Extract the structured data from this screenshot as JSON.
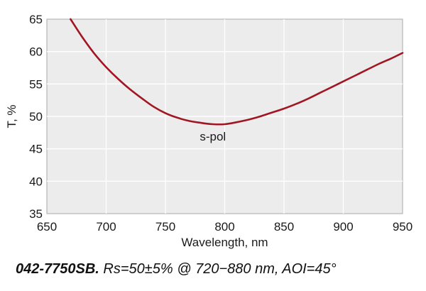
{
  "caption": {
    "model": "042-7750SB.",
    "spec": " Rs=50±5% @ 720−880 nm, AOI=45°"
  },
  "chart_data": {
    "type": "line",
    "title": "",
    "xlabel": "Wavelength, nm",
    "ylabel": "T, %",
    "xlim": [
      650,
      950
    ],
    "ylim": [
      35,
      65
    ],
    "x_ticks": [
      650,
      700,
      750,
      800,
      850,
      900,
      950
    ],
    "y_ticks": [
      35,
      40,
      45,
      50,
      55,
      60,
      65
    ],
    "grid": true,
    "series": [
      {
        "name": "s-pol",
        "color": "#a01623",
        "x": [
          670,
          680,
          690,
          700,
          710,
          720,
          730,
          740,
          750,
          760,
          770,
          780,
          790,
          800,
          810,
          820,
          830,
          840,
          850,
          860,
          870,
          880,
          890,
          900,
          910,
          920,
          930,
          940,
          950
        ],
        "y": [
          65.0,
          62.2,
          59.7,
          57.6,
          55.8,
          54.2,
          52.8,
          51.5,
          50.5,
          49.8,
          49.3,
          49.0,
          48.8,
          48.8,
          49.1,
          49.5,
          50.0,
          50.6,
          51.2,
          51.9,
          52.7,
          53.6,
          54.5,
          55.4,
          56.3,
          57.2,
          58.1,
          58.9,
          59.8
        ]
      }
    ],
    "annotations": [
      {
        "text": "s-pol",
        "x": 790,
        "y": 46.3
      }
    ]
  }
}
